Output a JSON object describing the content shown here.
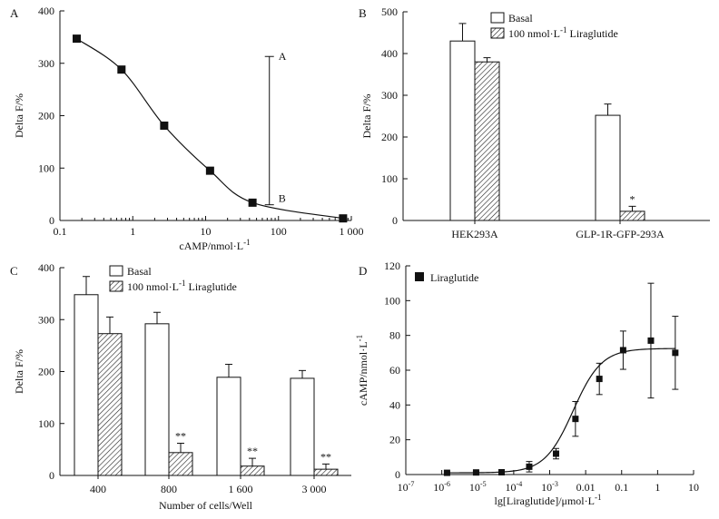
{
  "chart_data": [
    {
      "id": "A",
      "type": "line",
      "panel_label": "A",
      "xscale": "log",
      "xlim": [
        0.1,
        1000
      ],
      "ylim": [
        0,
        400
      ],
      "x_ticks": [
        0.1,
        1,
        10,
        100,
        1000
      ],
      "x_tick_labels": [
        "0.1",
        "1",
        "10",
        "100",
        "1 000"
      ],
      "y_ticks": [
        0,
        100,
        200,
        300,
        400
      ],
      "y_tick_labels": [
        "0",
        "100",
        "200",
        "300",
        "400"
      ],
      "xlabel_main": "cAMP/nmol·L",
      "xlabel_sup": "-1",
      "ylabel": "Delta F/%",
      "points": [
        {
          "x": 0.17,
          "y": 347
        },
        {
          "x": 0.7,
          "y": 288
        },
        {
          "x": 2.7,
          "y": 181
        },
        {
          "x": 11.5,
          "y": 95
        },
        {
          "x": 44,
          "y": 34
        },
        {
          "x": 770,
          "y": 4
        }
      ],
      "annotation": {
        "x": 75,
        "y_top": 313,
        "y_bottom": 30,
        "label_top": "A",
        "label_bottom": "B"
      }
    },
    {
      "id": "B",
      "type": "bar",
      "panel_label": "B",
      "ylim": [
        0,
        500
      ],
      "y_ticks": [
        0,
        100,
        200,
        300,
        400,
        500
      ],
      "y_tick_labels": [
        "0",
        "100",
        "200",
        "300",
        "400",
        "500"
      ],
      "ylabel": "Delta F/%",
      "categories": [
        "HEK293A",
        "GLP-1R-GFP-293A"
      ],
      "series": [
        {
          "name": "Basal",
          "pattern": "open",
          "values": [
            430,
            252
          ],
          "errors": [
            42,
            27
          ]
        },
        {
          "name": "100 nmol·L",
          "name_sup": "-1",
          "name_suffix": " Liraglutide",
          "pattern": "hatched",
          "values": [
            380,
            22
          ],
          "errors": [
            10,
            12
          ]
        }
      ],
      "significance": [
        {
          "category": 1,
          "series": 1,
          "label": "*"
        }
      ]
    },
    {
      "id": "C",
      "type": "bar",
      "panel_label": "C",
      "ylim": [
        0,
        400
      ],
      "y_ticks": [
        0,
        100,
        200,
        300,
        400
      ],
      "y_tick_labels": [
        "0",
        "100",
        "200",
        "300",
        "400"
      ],
      "ylabel": "Delta F/%",
      "xlabel": "Number of cells/Well",
      "categories": [
        "400",
        "800",
        "1 600",
        "3 000"
      ],
      "series": [
        {
          "name": "Basal",
          "pattern": "open",
          "values": [
            348,
            292,
            189,
            187
          ],
          "errors": [
            35,
            22,
            25,
            15
          ]
        },
        {
          "name": "100 nmol·L",
          "name_sup": "-1",
          "name_suffix": " Liraglutide",
          "pattern": "hatched",
          "values": [
            273,
            44,
            18,
            12
          ],
          "errors": [
            32,
            18,
            15,
            10
          ]
        }
      ],
      "significance": [
        {
          "category": 1,
          "series": 1,
          "label": "**"
        },
        {
          "category": 2,
          "series": 1,
          "label": "**"
        },
        {
          "category": 3,
          "series": 1,
          "label": "**"
        }
      ]
    },
    {
      "id": "D",
      "type": "scatter",
      "panel_label": "D",
      "xscale": "log",
      "xlim": [
        1e-07,
        10
      ],
      "ylim": [
        0,
        120
      ],
      "x_ticks": [
        1e-07,
        1e-06,
        1e-05,
        0.0001,
        0.001,
        0.01,
        0.1,
        1,
        10
      ],
      "x_tick_labels": [
        {
          "base": "10",
          "exp": "-7"
        },
        {
          "base": "10",
          "exp": "-6"
        },
        {
          "base": "10",
          "exp": "-5"
        },
        {
          "base": "10",
          "exp": "-4"
        },
        {
          "base": "10",
          "exp": "-3"
        },
        {
          "base": "0.01",
          "exp": ""
        },
        {
          "base": "0.1",
          "exp": ""
        },
        {
          "base": "1",
          "exp": ""
        },
        {
          "base": "10",
          "exp": ""
        }
      ],
      "y_ticks": [
        0,
        20,
        40,
        60,
        80,
        100,
        120
      ],
      "y_tick_labels": [
        "0",
        "20",
        "40",
        "60",
        "80",
        "100",
        "120"
      ],
      "xlabel_main": "lg[Liraglutide]/μmol·L",
      "xlabel_sup": "-1",
      "ylabel_main": "cAMP/nmol·L",
      "ylabel_sup": "-1",
      "legend": "Liraglutide",
      "points": [
        {
          "x": 1.4e-06,
          "y": 1,
          "err": 0.5
        },
        {
          "x": 9e-06,
          "y": 1.2,
          "err": 0.5
        },
        {
          "x": 4.6e-05,
          "y": 1.3,
          "err": 0.5
        },
        {
          "x": 0.00027,
          "y": 4.5,
          "err": 3
        },
        {
          "x": 0.0015,
          "y": 12,
          "err": 3
        },
        {
          "x": 0.0052,
          "y": 32,
          "err": 10
        },
        {
          "x": 0.024,
          "y": 55,
          "err": 9
        },
        {
          "x": 0.11,
          "y": 71.5,
          "err": 11
        },
        {
          "x": 0.65,
          "y": 77,
          "err": 33
        },
        {
          "x": 3.1,
          "y": 70,
          "err": 21
        }
      ],
      "fit": {
        "bottom": 1,
        "top": 72.5,
        "ec50": 0.0045,
        "hill": 1.1
      }
    }
  ]
}
